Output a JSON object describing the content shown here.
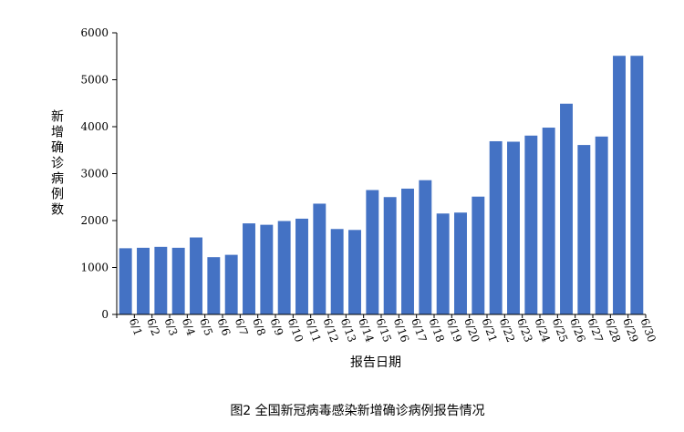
{
  "chart_data": {
    "type": "bar",
    "categories": [
      "6/1",
      "6/2",
      "6/3",
      "6/4",
      "6/5",
      "6/6",
      "6/7",
      "6/8",
      "6/9",
      "6/10",
      "6/11",
      "6/12",
      "6/13",
      "6/14",
      "6/15",
      "6/16",
      "6/17",
      "6/18",
      "6/19",
      "6/20",
      "6/21",
      "6/22",
      "6/23",
      "6/24",
      "6/25",
      "6/26",
      "6/27",
      "6/28",
      "6/29",
      "6/30"
    ],
    "values": [
      1410,
      1420,
      1440,
      1420,
      1640,
      1220,
      1270,
      1940,
      1910,
      1990,
      2040,
      2360,
      1820,
      1800,
      2650,
      2500,
      2680,
      2860,
      2150,
      2170,
      2510,
      3690,
      3680,
      3810,
      3980,
      4490,
      3610,
      3790,
      5510,
      5510
    ],
    "yticks": [
      "0",
      "1000",
      "2000",
      "3000",
      "4000",
      "5000",
      "6000"
    ],
    "ylim": [
      0,
      6000
    ],
    "ylabel": "新增确诊病例数",
    "xlabel": "报告日期",
    "caption": "图2  全国新冠病毒感染新增确诊病例报告情况",
    "bar_color": "#4472C4",
    "grid": false,
    "legend": "none"
  }
}
